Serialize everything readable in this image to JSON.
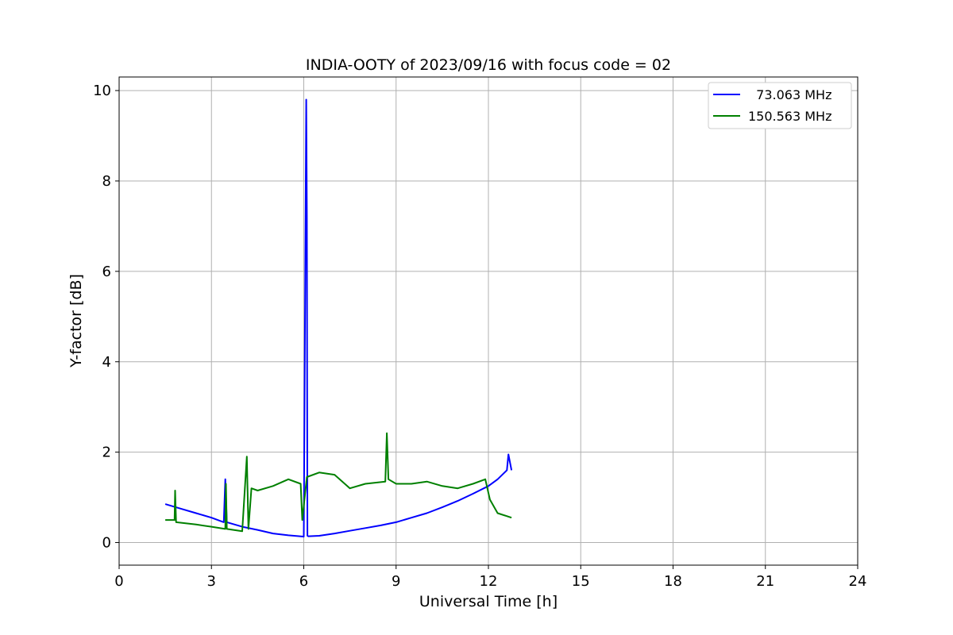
{
  "chart_data": {
    "type": "line",
    "title": "INDIA-OOTY of 2023/09/16 with focus code = 02",
    "xlabel": "Universal Time [h]",
    "ylabel": "Y-factor [dB]",
    "xlim": [
      0,
      24
    ],
    "ylim": [
      -0.5,
      10.3
    ],
    "xticks": [
      0,
      3,
      6,
      9,
      12,
      15,
      18,
      21,
      24
    ],
    "yticks": [
      0,
      2,
      4,
      6,
      8,
      10
    ],
    "grid": true,
    "legend_position": "top-right",
    "series": [
      {
        "name": "  73.063 MHz",
        "color": "#0000ff",
        "x": [
          1.5,
          2.0,
          2.5,
          3.0,
          3.4,
          3.45,
          3.5,
          4.0,
          4.5,
          5.0,
          5.5,
          6.0,
          6.08,
          6.1,
          6.12,
          6.15,
          6.5,
          7.0,
          7.5,
          8.0,
          8.5,
          9.0,
          9.5,
          10.0,
          10.5,
          11.0,
          11.5,
          12.0,
          12.3,
          12.6,
          12.65,
          12.75
        ],
        "y": [
          0.85,
          0.75,
          0.65,
          0.55,
          0.45,
          1.4,
          0.45,
          0.35,
          0.28,
          0.2,
          0.16,
          0.13,
          9.8,
          7.2,
          0.15,
          0.14,
          0.15,
          0.2,
          0.26,
          0.32,
          0.38,
          0.45,
          0.55,
          0.65,
          0.78,
          0.92,
          1.08,
          1.25,
          1.4,
          1.6,
          1.95,
          1.6
        ]
      },
      {
        "name": "150.563 MHz",
        "color": "#008000",
        "x": [
          1.5,
          1.8,
          1.82,
          1.85,
          2.5,
          3.0,
          3.45,
          3.47,
          3.5,
          4.0,
          4.15,
          4.2,
          4.3,
          4.5,
          5.0,
          5.5,
          5.9,
          5.95,
          6.1,
          6.5,
          7.0,
          7.5,
          8.0,
          8.65,
          8.7,
          8.75,
          9.0,
          9.5,
          10.0,
          10.5,
          11.0,
          11.5,
          11.9,
          12.05,
          12.3,
          12.75
        ],
        "y": [
          0.5,
          0.5,
          1.15,
          0.45,
          0.4,
          0.35,
          0.3,
          1.3,
          0.3,
          0.25,
          1.9,
          0.3,
          1.2,
          1.15,
          1.25,
          1.4,
          1.3,
          0.5,
          1.45,
          1.55,
          1.5,
          1.2,
          1.3,
          1.35,
          2.42,
          1.4,
          1.3,
          1.3,
          1.35,
          1.25,
          1.2,
          1.3,
          1.4,
          0.95,
          0.65,
          0.55
        ]
      }
    ]
  }
}
